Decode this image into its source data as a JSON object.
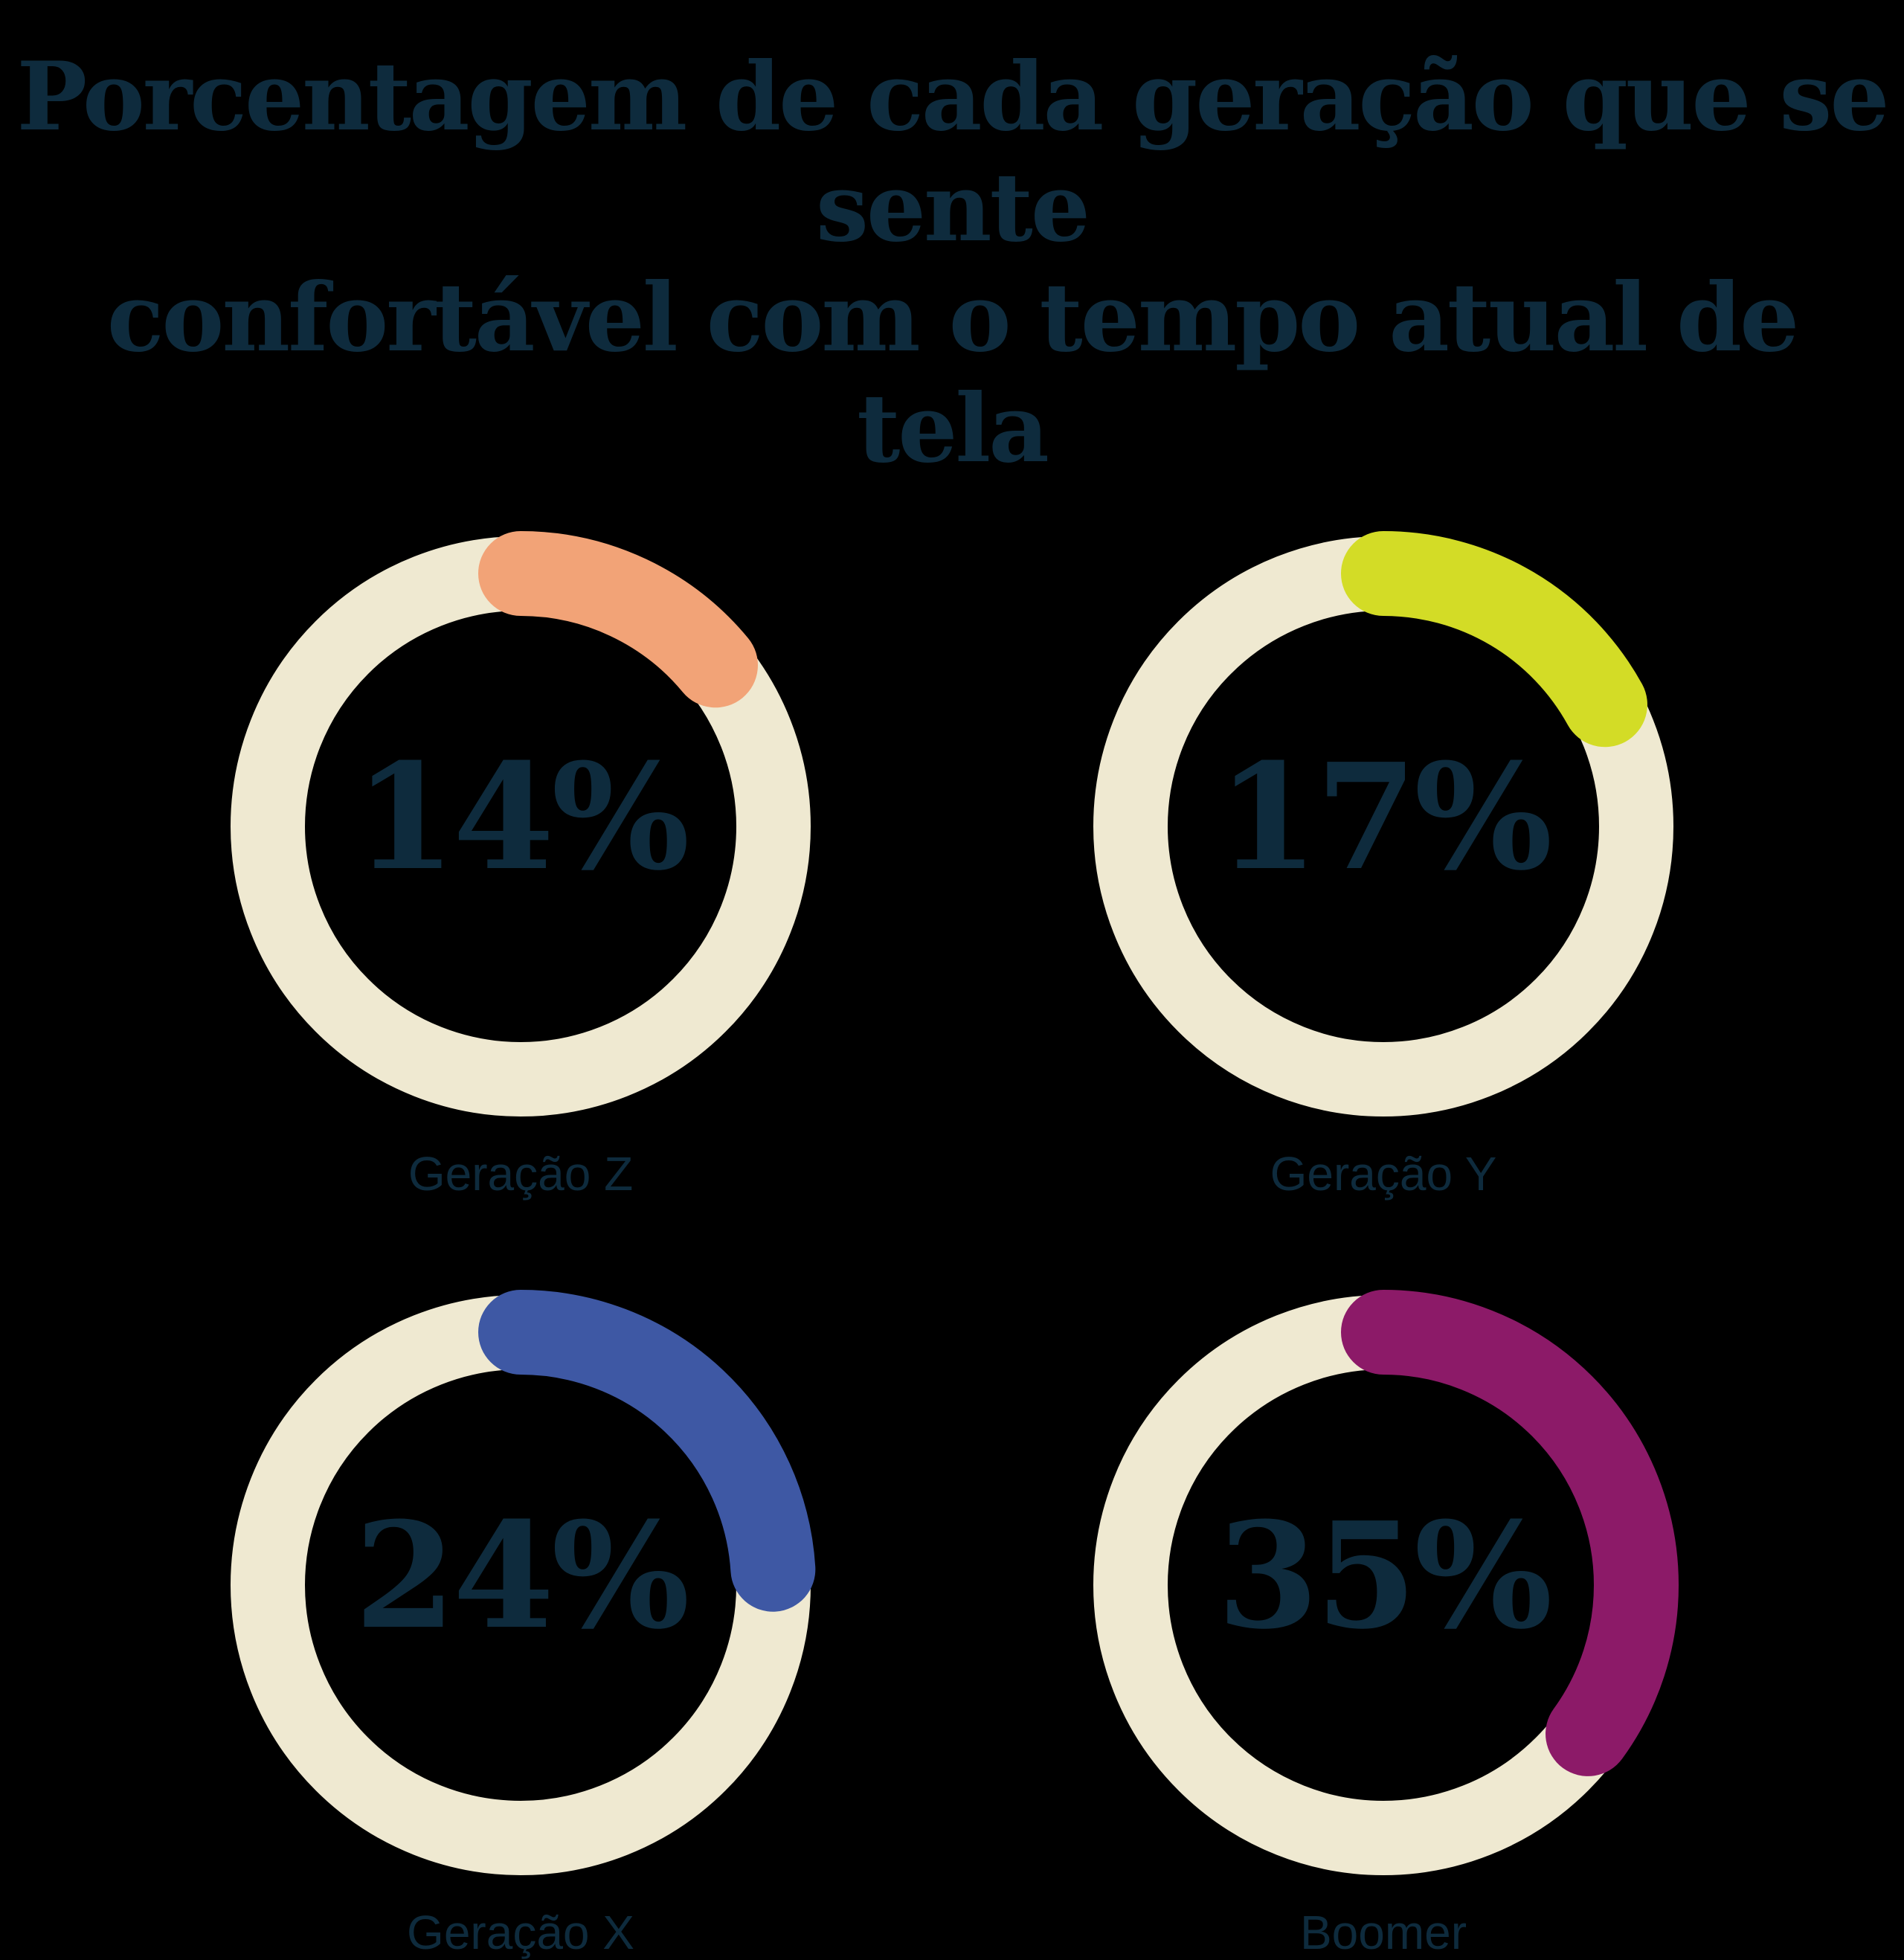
{
  "page": {
    "background": "#000000"
  },
  "header": {
    "title_line1": "Porcentagem de cada geração que se sente",
    "title_line2": "confortável com o tempo atual de tela"
  },
  "colors": {
    "text": "#0E2B3D",
    "track": "#EFE9D1",
    "background": "#000000"
  },
  "chart_data": {
    "type": "donut",
    "title": "Porcentagem de cada geração que se sente confortável com o tempo atual de tela",
    "unit": "percent",
    "categories": [
      "Geração Z",
      "Geração Y",
      "Geração X",
      "Boomer"
    ],
    "values": [
      14,
      17,
      24,
      35
    ],
    "series": [
      {
        "category": "Geração Z",
        "value": 14,
        "value_label": "14%",
        "arc_color": "#F2A377"
      },
      {
        "category": "Geração Y",
        "value": 17,
        "value_label": "17%",
        "arc_color": "#D3DC26"
      },
      {
        "category": "Geração X",
        "value": 24,
        "value_label": "24%",
        "arc_color": "#3E58A4"
      },
      {
        "category": "Boomer",
        "value": 35,
        "value_label": "35%",
        "arc_color": "#8C1A68"
      }
    ],
    "track_color": "#EFE9D1",
    "start_angle_deg": 0,
    "direction": "clockwise",
    "legend": "none",
    "grid": "off"
  }
}
